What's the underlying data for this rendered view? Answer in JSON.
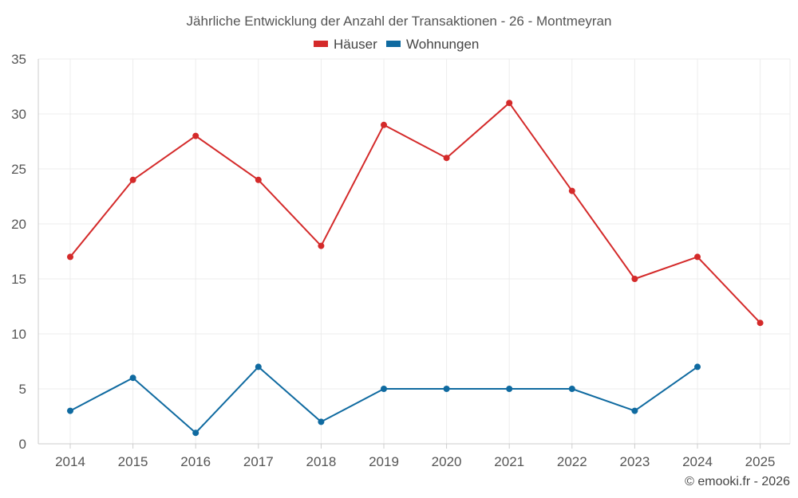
{
  "chart_data": {
    "type": "line",
    "title": "Jährliche Entwicklung der Anzahl der Transaktionen - 26 - Montmeyran",
    "xlabel": "",
    "ylabel": "",
    "categories": [
      "2014",
      "2015",
      "2016",
      "2017",
      "2018",
      "2019",
      "2020",
      "2021",
      "2022",
      "2023",
      "2024",
      "2025"
    ],
    "ylim": [
      0,
      35
    ],
    "yticks": [
      0,
      5,
      10,
      15,
      20,
      25,
      30,
      35
    ],
    "grid": true,
    "legend_position": "top-center",
    "series": [
      {
        "name": "Häuser",
        "color": "#d42a2a",
        "values": [
          17,
          24,
          28,
          24,
          18,
          29,
          26,
          31,
          23,
          15,
          17,
          11
        ]
      },
      {
        "name": "Wohnungen",
        "color": "#0f6aa0",
        "values": [
          3,
          6,
          1,
          7,
          2,
          5,
          5,
          5,
          5,
          3,
          7,
          null
        ]
      }
    ]
  },
  "footer": "© emooki.fr - 2026"
}
